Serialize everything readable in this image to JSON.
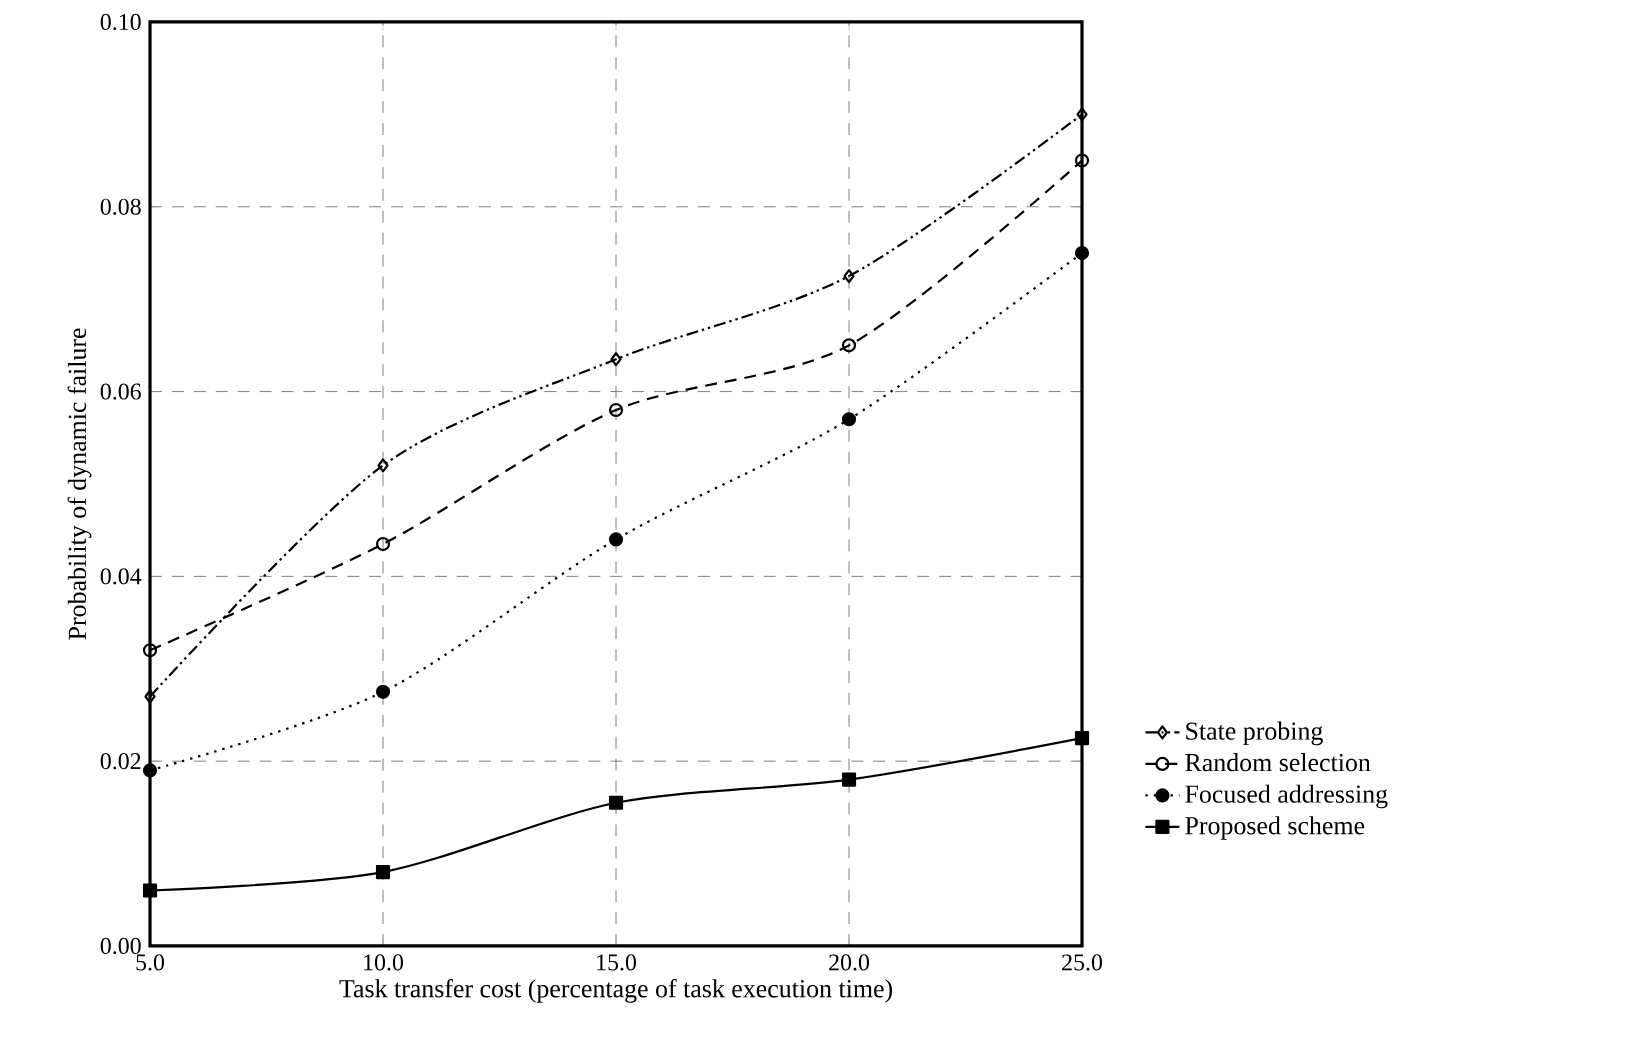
{
  "chart_data": {
    "type": "line",
    "xlabel": "Task transfer cost (percentage of task execution time)",
    "ylabel": "Probability of dynamic failure",
    "x": [
      5,
      10,
      15,
      20,
      25
    ],
    "series": [
      {
        "name": "State probing",
        "color": "#000000",
        "marker": "diamond",
        "line_style": "dashdotdotted",
        "values": [
          0.027,
          0.052,
          0.0635,
          0.0725,
          0.09
        ]
      },
      {
        "name": "Random selection",
        "color": "#000000",
        "marker": "circle",
        "line_style": "dashed",
        "values": [
          0.032,
          0.0435,
          0.058,
          0.065,
          0.085
        ]
      },
      {
        "name": "Focused addressing",
        "color": "#000000",
        "marker": "circle",
        "line_style": "dotted",
        "values": [
          0.019,
          0.0275,
          0.044,
          0.057,
          0.075
        ]
      },
      {
        "name": "Proposed scheme",
        "color": "#000000",
        "marker": "square",
        "line_style": "solid",
        "values": [
          0.006,
          0.008,
          0.0155,
          0.018,
          0.0225
        ]
      }
    ],
    "xlim": [
      5,
      25
    ],
    "ylim": [
      0,
      0.1
    ],
    "xticks": [
      {
        "value": 5,
        "label": "5.0"
      },
      {
        "value": 10,
        "label": "10.0"
      },
      {
        "value": 15,
        "label": "15.0"
      },
      {
        "value": 20,
        "label": "20.0"
      },
      {
        "value": 25,
        "label": "25.0"
      }
    ],
    "yticks": [
      {
        "value": 0,
        "label": "0.00"
      },
      {
        "value": 0.02,
        "label": "0.02"
      },
      {
        "value": 0.04,
        "label": "0.04"
      },
      {
        "value": 0.06,
        "label": "0.06"
      },
      {
        "value": 0.08,
        "label": "0.08"
      },
      {
        "value": 0.1,
        "label": "0.10"
      }
    ],
    "grid": true,
    "legend": "right"
  }
}
